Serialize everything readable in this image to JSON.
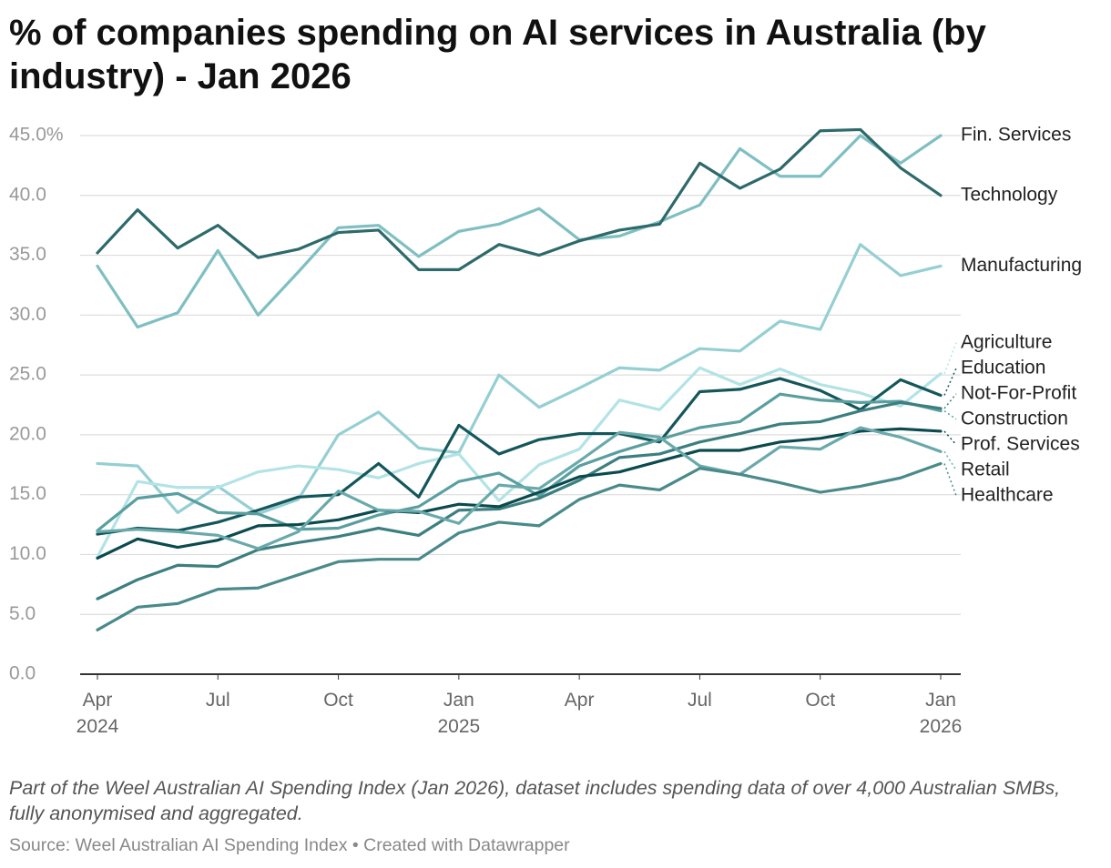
{
  "chart_data": {
    "type": "line",
    "title": "% of companies spending on AI services in Australia (by industry) - Jan 2026",
    "description": "Part of the Weel Australian AI Spending Index (Jan 2026), dataset includes spending data of over 4,000 Australian SMBs, fully anonymised and aggregated.",
    "source": "Source: Weel Australian AI Spending Index • Created with Datawrapper",
    "categories": [
      "Apr 2024",
      null,
      null,
      "Jul",
      null,
      null,
      "Oct",
      null,
      null,
      "Jan 2025",
      null,
      null,
      "Apr",
      null,
      null,
      "Jul",
      null,
      null,
      "Oct",
      null,
      null,
      "Jan 2026"
    ],
    "ylim": [
      0,
      45
    ],
    "yticks": [
      {
        "value": 0,
        "label": "0.0"
      },
      {
        "value": 5,
        "label": "5.0"
      },
      {
        "value": 10,
        "label": "10.0"
      },
      {
        "value": 15,
        "label": "15.0"
      },
      {
        "value": 20,
        "label": "20.0"
      },
      {
        "value": 25,
        "label": "25.0"
      },
      {
        "value": 30,
        "label": "30.0"
      },
      {
        "value": 35,
        "label": "35.0"
      },
      {
        "value": 40,
        "label": "40.0"
      },
      {
        "value": 45,
        "label": "45.0%"
      }
    ],
    "grid": true,
    "series": [
      {
        "name": "Fin. Services",
        "color": "#7fbfc1",
        "values": [
          34.1,
          29.0,
          30.2,
          35.4,
          30.0,
          33.6,
          37.3,
          37.5,
          34.9,
          37.0,
          37.6,
          38.9,
          36.3,
          36.6,
          37.8,
          39.2,
          43.9,
          41.6,
          41.6,
          45.0,
          42.7,
          45.0
        ]
      },
      {
        "name": "Technology",
        "color": "#2e6a6b",
        "values": [
          35.2,
          38.8,
          35.6,
          37.5,
          34.8,
          35.5,
          36.9,
          37.1,
          33.8,
          33.8,
          35.9,
          35.0,
          36.2,
          37.1,
          37.6,
          42.7,
          40.6,
          42.2,
          45.4,
          45.5,
          42.3,
          40.0
        ]
      },
      {
        "name": "Manufacturing",
        "color": "#95cfd3",
        "values": [
          17.6,
          17.4,
          13.5,
          15.7,
          13.4,
          14.6,
          20.0,
          21.9,
          18.9,
          18.5,
          25.0,
          22.3,
          23.9,
          25.6,
          25.4,
          27.2,
          27.0,
          29.5,
          28.8,
          35.9,
          33.3,
          34.1
        ]
      },
      {
        "name": "Agriculture",
        "color": "#b3e3e6",
        "values": [
          9.8,
          16.1,
          15.6,
          15.6,
          16.9,
          17.4,
          17.1,
          16.4,
          17.6,
          18.4,
          14.5,
          17.5,
          18.8,
          22.9,
          22.1,
          25.6,
          24.2,
          25.5,
          24.2,
          23.5,
          22.4,
          25.1
        ]
      },
      {
        "name": "Education",
        "color": "#14575b",
        "values": [
          11.7,
          12.2,
          12.0,
          12.7,
          13.7,
          14.8,
          15.0,
          17.6,
          14.8,
          20.8,
          18.4,
          19.6,
          20.1,
          20.1,
          19.4,
          23.6,
          23.8,
          24.7,
          23.7,
          22.1,
          24.6,
          23.3
        ]
      },
      {
        "name": "Construction",
        "color": "#5a9fa0",
        "values": [
          12.0,
          14.7,
          15.1,
          13.5,
          13.4,
          12.1,
          12.2,
          13.3,
          14.0,
          16.1,
          16.8,
          14.9,
          17.4,
          18.6,
          19.6,
          20.6,
          21.1,
          23.4,
          22.9,
          22.7,
          22.8,
          22.0
        ]
      },
      {
        "name": "Not-For-Profit",
        "color": "#3d7f80",
        "values": [
          6.3,
          7.9,
          9.1,
          9.0,
          10.4,
          11.0,
          11.5,
          12.2,
          11.6,
          13.7,
          13.8,
          14.7,
          16.2,
          18.1,
          18.4,
          19.4,
          20.1,
          20.9,
          21.1,
          22.0,
          22.7,
          22.2
        ]
      },
      {
        "name": "Prof. Services",
        "color": "#0b4a4e",
        "values": [
          9.7,
          11.3,
          10.6,
          11.2,
          12.4,
          12.5,
          12.9,
          13.7,
          13.5,
          14.2,
          14.0,
          15.2,
          16.5,
          16.9,
          17.8,
          18.7,
          18.7,
          19.4,
          19.7,
          20.3,
          20.5,
          20.3
        ]
      },
      {
        "name": "Retail",
        "color": "#6aa9ab",
        "values": [
          11.9,
          12.1,
          11.9,
          11.6,
          10.5,
          11.9,
          15.3,
          13.7,
          13.6,
          12.6,
          15.8,
          15.5,
          17.8,
          20.2,
          19.8,
          17.4,
          16.7,
          19.0,
          18.8,
          20.6,
          19.8,
          18.6
        ]
      },
      {
        "name": "Healthcare",
        "color": "#4a8a8b",
        "values": [
          3.7,
          5.6,
          5.9,
          7.1,
          7.2,
          8.3,
          9.4,
          9.6,
          9.6,
          11.8,
          12.7,
          12.4,
          14.6,
          15.8,
          15.4,
          17.2,
          16.7,
          16.0,
          15.2,
          15.7,
          16.4,
          17.6
        ]
      }
    ]
  }
}
